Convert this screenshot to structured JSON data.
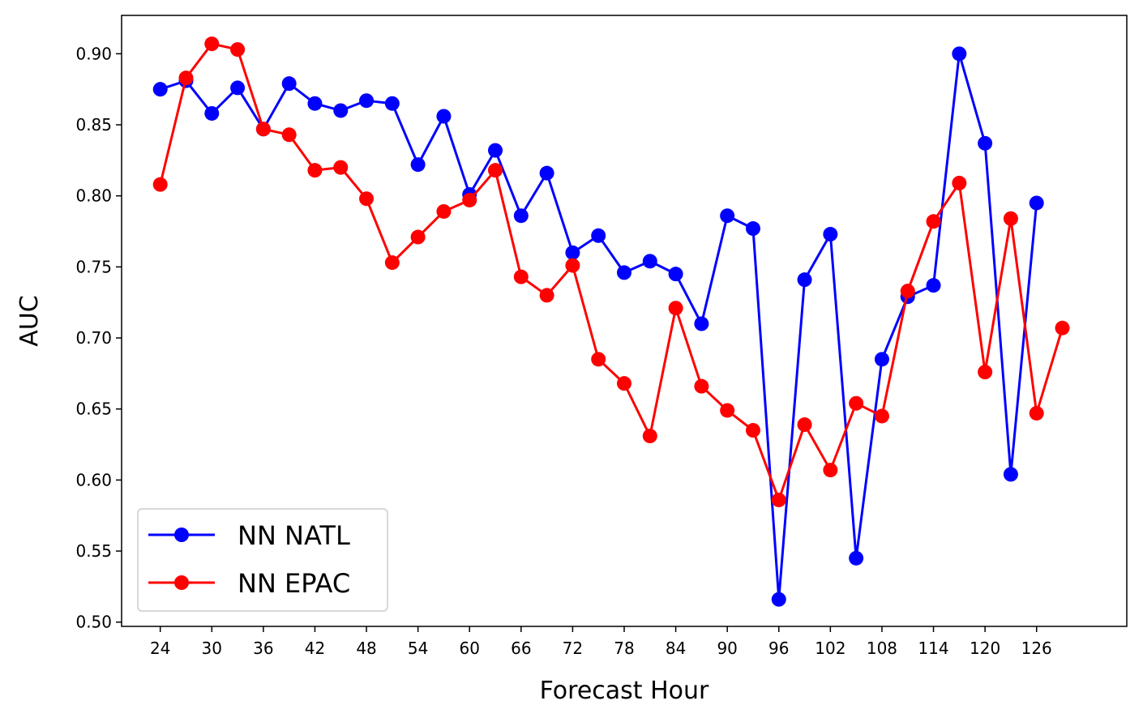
{
  "chart_data": {
    "type": "line",
    "xlabel": "Forecast Hour",
    "ylabel": "AUC",
    "xlim": [
      19.5,
      136.5
    ],
    "ylim": [
      0.497,
      0.927
    ],
    "xticks": [
      24,
      30,
      36,
      42,
      48,
      54,
      60,
      66,
      72,
      78,
      84,
      90,
      96,
      102,
      108,
      114,
      120,
      126
    ],
    "yticks": [
      0.5,
      0.55,
      0.6,
      0.65,
      0.7,
      0.75,
      0.8,
      0.85,
      0.9
    ],
    "grid": false,
    "legend_position": "lower-left",
    "series": [
      {
        "name": "NN NATL",
        "color": "#0000ff",
        "x": [
          24,
          27,
          30,
          33,
          36,
          39,
          42,
          45,
          48,
          51,
          54,
          57,
          60,
          63,
          66,
          69,
          72,
          75,
          78,
          81,
          84,
          87,
          90,
          93,
          96,
          99,
          102,
          105,
          108,
          111,
          114,
          117,
          120,
          123,
          126
        ],
        "y": [
          0.875,
          0.881,
          0.858,
          0.876,
          0.847,
          0.879,
          0.865,
          0.86,
          0.867,
          0.865,
          0.822,
          0.856,
          0.801,
          0.832,
          0.786,
          0.816,
          0.76,
          0.772,
          0.746,
          0.754,
          0.745,
          0.71,
          0.786,
          0.777,
          0.516,
          0.741,
          0.773,
          0.545,
          0.685,
          0.729,
          0.737,
          0.9,
          0.837,
          0.604,
          0.795
        ]
      },
      {
        "name": "NN EPAC",
        "color": "#ff0000",
        "x": [
          24,
          27,
          30,
          33,
          36,
          39,
          42,
          45,
          48,
          51,
          54,
          57,
          60,
          63,
          66,
          69,
          72,
          75,
          78,
          81,
          84,
          87,
          90,
          93,
          96,
          99,
          102,
          105,
          108,
          111,
          114,
          117,
          120,
          123,
          126,
          129
        ],
        "y": [
          0.808,
          0.883,
          0.907,
          0.903,
          0.847,
          0.843,
          0.818,
          0.82,
          0.798,
          0.753,
          0.771,
          0.789,
          0.797,
          0.818,
          0.743,
          0.73,
          0.751,
          0.685,
          0.668,
          0.631,
          0.721,
          0.666,
          0.649,
          0.635,
          0.586,
          0.639,
          0.607,
          0.654,
          0.645,
          0.733,
          0.782,
          0.809,
          0.676,
          0.784,
          0.647,
          0.707
        ]
      }
    ]
  }
}
